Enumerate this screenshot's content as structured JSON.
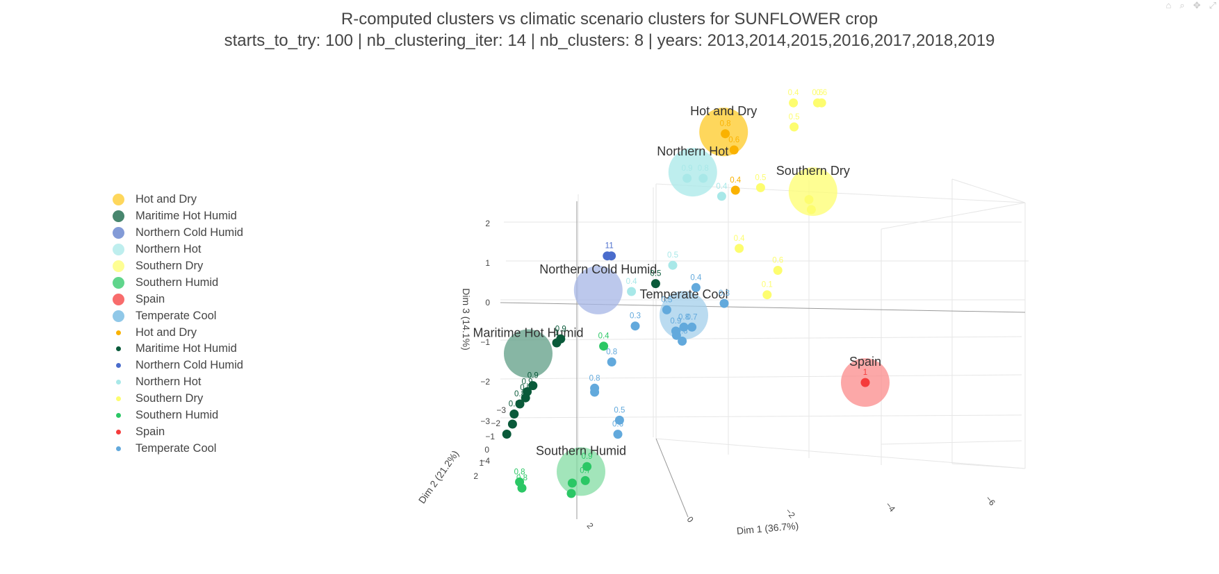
{
  "title": "R-computed clusters vs climatic scenario clusters for SUNFLOWER crop",
  "subtitle": "starts_to_try: 100 | nb_clustering_iter: 14 | nb_clusters: 8 | years: 2013,2014,2015,2016,2017,2018,2019",
  "modebar": {
    "camera": "⌂",
    "zoom": "⌕",
    "pan": "✥",
    "reset": "⤢"
  },
  "legend": [
    {
      "label": "Hot and Dry",
      "color": "#fdca26",
      "kind": "cluster"
    },
    {
      "label": "Maritime Hot Humid",
      "color": "#0b5d3d",
      "kind": "cluster"
    },
    {
      "label": "Northern Cold Humid",
      "color": "#5a79c9",
      "kind": "cluster"
    },
    {
      "label": "Northern Hot",
      "color": "#a8e8e8",
      "kind": "cluster"
    },
    {
      "label": "Southern Dry",
      "color": "#fdfd6f",
      "kind": "cluster"
    },
    {
      "label": "Southern Humid",
      "color": "#2bc765",
      "kind": "cluster"
    },
    {
      "label": "Spain",
      "color": "#f53b3b",
      "kind": "cluster"
    },
    {
      "label": "Temperate Cool",
      "color": "#6bb5e0",
      "kind": "cluster"
    },
    {
      "label": "Hot and Dry",
      "color": "#fab200",
      "kind": "point"
    },
    {
      "label": "Maritime Hot Humid",
      "color": "#0a5a3a",
      "kind": "point"
    },
    {
      "label": "Northern Cold Humid",
      "color": "#4a6ccc",
      "kind": "point"
    },
    {
      "label": "Northern Hot",
      "color": "#a8e8e8",
      "kind": "point"
    },
    {
      "label": "Southern Dry",
      "color": "#fdfd6f",
      "kind": "point"
    },
    {
      "label": "Southern Humid",
      "color": "#2bc765",
      "kind": "point"
    },
    {
      "label": "Spain",
      "color": "#f53b3b",
      "kind": "point"
    },
    {
      "label": "Temperate Cool",
      "color": "#62a9dc",
      "kind": "point"
    }
  ],
  "chart_data": {
    "type": "scatter",
    "projection": "3d",
    "xlabel": "Dim 1 (36.7%)",
    "ylabel": "Dim 2 (21.2%)",
    "zlabel": "Dim 3 (14.1%)",
    "x_ticks": [
      "2",
      "0",
      "−2",
      "−4",
      "−6"
    ],
    "y_ticks": [
      "−3",
      "−2",
      "−1",
      "0",
      "1",
      "2"
    ],
    "z_ticks": [
      "−4",
      "−3",
      "−2",
      "−1",
      "0",
      "1",
      "2"
    ],
    "grid": true,
    "legend_position": "left",
    "clusters": [
      {
        "name": "Hot and Dry",
        "color": "#fdca26",
        "x": -0.6,
        "y": -2.6,
        "z": 2.9
      },
      {
        "name": "Northern Hot",
        "color": "#a8e8e8",
        "x": 0.0,
        "y": -2.2,
        "z": 2.1
      },
      {
        "name": "Southern Dry",
        "color": "#fdfd6f",
        "x": -2.9,
        "y": -2.4,
        "z": 1.5
      },
      {
        "name": "Northern Cold Humid",
        "color": "#a6b5e6",
        "x": 1.6,
        "y": -0.4,
        "z": 0.1
      },
      {
        "name": "Maritime Hot Humid",
        "color": "#5f9e85",
        "x": 2.8,
        "y": 0.9,
        "z": -0.8
      },
      {
        "name": "Temperate Cool",
        "color": "#a3cfeb",
        "x": -0.4,
        "y": -0.7,
        "z": -0.7
      },
      {
        "name": "Spain",
        "color": "#fb8b8b",
        "x": -4.9,
        "y": -0.7,
        "z": -2.4
      },
      {
        "name": "Southern Humid",
        "color": "#83dca3",
        "x": 1.2,
        "y": 1.6,
        "z": -3.4
      }
    ],
    "points": [
      {
        "cluster": "Hot and Dry",
        "label": "0.8",
        "x": -0.6,
        "y": -2.7,
        "z": 2.8
      },
      {
        "cluster": "Hot and Dry",
        "label": "0.6",
        "x": -0.9,
        "y": -2.5,
        "z": 2.5
      },
      {
        "cluster": "Hot and Dry",
        "label": "0.4",
        "x": -1.1,
        "y": -2.1,
        "z": 1.7
      },
      {
        "cluster": "Southern Dry",
        "label": "0.4",
        "x": -2.0,
        "y": -3.4,
        "z": 3.2
      },
      {
        "cluster": "Southern Dry",
        "label": "0.6",
        "x": -2.6,
        "y": -3.4,
        "z": 3.2
      },
      {
        "cluster": "Southern Dry",
        "label": "0.6",
        "x": -2.7,
        "y": -3.4,
        "z": 3.2
      },
      {
        "cluster": "Southern Dry",
        "label": "0.5",
        "x": -2.1,
        "y": -3.2,
        "z": 2.7
      },
      {
        "cluster": "Southern Dry",
        "label": "0.5",
        "x": -1.6,
        "y": -2.4,
        "z": 1.6
      },
      {
        "cluster": "Southern Dry",
        "label": "0.4",
        "x": -1.4,
        "y": -1.6,
        "z": 0.5
      },
      {
        "cluster": "Southern Dry",
        "label": "0.6",
        "x": -2.4,
        "y": -1.5,
        "z": 0.0
      },
      {
        "cluster": "Southern Dry",
        "label": "0.1",
        "x": -2.3,
        "y": -1.1,
        "z": -0.4
      },
      {
        "cluster": "Southern Dry",
        "label": "",
        "x": -2.8,
        "y": -2.4,
        "z": 1.3
      },
      {
        "cluster": "Southern Dry",
        "label": "",
        "x": -2.9,
        "y": -2.3,
        "z": 1.1
      },
      {
        "cluster": "Northern Hot",
        "label": "0.9",
        "x": 0.1,
        "y": -2.1,
        "z": 2.0
      },
      {
        "cluster": "Northern Hot",
        "label": "0.8",
        "x": -0.3,
        "y": -2.1,
        "z": 2.0
      },
      {
        "cluster": "Northern Hot",
        "label": "0.4",
        "x": -0.8,
        "y": -2.0,
        "z": 1.6
      },
      {
        "cluster": "Northern Hot",
        "label": "0.5",
        "x": 0.0,
        "y": -1.0,
        "z": 0.4
      },
      {
        "cluster": "Northern Hot",
        "label": "0.4",
        "x": 0.9,
        "y": -0.7,
        "z": -0.1
      },
      {
        "cluster": "Northern Cold Humid",
        "label": "1",
        "x": 1.5,
        "y": -0.7,
        "z": 0.8
      },
      {
        "cluster": "Northern Cold Humid",
        "label": "1",
        "x": 1.4,
        "y": -0.7,
        "z": 0.8
      },
      {
        "cluster": "Maritime Hot Humid",
        "label": "0.5",
        "x": 0.3,
        "y": -0.7,
        "z": 0.1
      },
      {
        "cluster": "Maritime Hot Humid",
        "label": "0.9",
        "x": 2.2,
        "y": 0.4,
        "z": -0.7
      },
      {
        "cluster": "Maritime Hot Humid",
        "label": "1",
        "x": 2.3,
        "y": 0.4,
        "z": -0.8
      },
      {
        "cluster": "Maritime Hot Humid",
        "label": "0.9",
        "x": 2.6,
        "y": 1.1,
        "z": -1.5
      },
      {
        "cluster": "Maritime Hot Humid",
        "label": "0.9",
        "x": 2.7,
        "y": 1.2,
        "z": -1.6
      },
      {
        "cluster": "Maritime Hot Humid",
        "label": "0.9",
        "x": 2.7,
        "y": 1.3,
        "z": -1.7
      },
      {
        "cluster": "Maritime Hot Humid",
        "label": "0.8",
        "x": 2.8,
        "y": 1.4,
        "z": -1.8
      },
      {
        "cluster": "Maritime Hot Humid",
        "label": "0.8",
        "x": 2.9,
        "y": 1.5,
        "z": -2.0
      },
      {
        "cluster": "Maritime Hot Humid",
        "label": "",
        "x": 2.9,
        "y": 1.6,
        "z": -2.2
      },
      {
        "cluster": "Maritime Hot Humid",
        "label": "",
        "x": 3.0,
        "y": 1.7,
        "z": -2.4
      },
      {
        "cluster": "Temperate Cool",
        "label": "0.4",
        "x": -0.7,
        "y": -0.7,
        "z": 0.0
      },
      {
        "cluster": "Temperate Cool",
        "label": "0.3",
        "x": -1.4,
        "y": -0.7,
        "z": -0.4
      },
      {
        "cluster": "Temperate Cool",
        "label": "0.5",
        "x": -0.1,
        "y": -0.4,
        "z": -0.4
      },
      {
        "cluster": "Temperate Cool",
        "label": "0.3",
        "x": 0.6,
        "y": -0.2,
        "z": -0.7
      },
      {
        "cluster": "Temperate Cool",
        "label": "0.9",
        "x": -0.2,
        "y": -0.7,
        "z": -1.1
      },
      {
        "cluster": "Temperate Cool",
        "label": "0.8",
        "x": -0.4,
        "y": -0.7,
        "z": -1.0
      },
      {
        "cluster": "Temperate Cool",
        "label": "0.7",
        "x": -0.6,
        "y": -0.7,
        "z": -1.0
      },
      {
        "cluster": "Temperate Cool",
        "label": "0.8",
        "x": -0.4,
        "y": -0.6,
        "z": -1.3
      },
      {
        "cluster": "Temperate Cool",
        "label": "",
        "x": -0.3,
        "y": -0.5,
        "z": -1.1
      },
      {
        "cluster": "Temperate Cool",
        "label": "0.8",
        "x": 1.1,
        "y": 0.0,
        "z": -1.5
      },
      {
        "cluster": "Temperate Cool",
        "label": "0.8",
        "x": 1.4,
        "y": 0.3,
        "z": -2.0
      },
      {
        "cluster": "Temperate Cool",
        "label": "",
        "x": 1.4,
        "y": 0.3,
        "z": -2.1
      },
      {
        "cluster": "Temperate Cool",
        "label": "0.5",
        "x": 0.7,
        "y": 0.5,
        "z": -2.7
      },
      {
        "cluster": "Temperate Cool",
        "label": "0.6",
        "x": 0.7,
        "y": 0.6,
        "z": -3.0
      },
      {
        "cluster": "Southern Humid",
        "label": "0.4",
        "x": 1.3,
        "y": 0.0,
        "z": -1.1
      },
      {
        "cluster": "Southern Humid",
        "label": "0.9",
        "x": 1.3,
        "y": 1.0,
        "z": -3.6
      },
      {
        "cluster": "Southern Humid",
        "label": "0.7",
        "x": 1.3,
        "y": 1.1,
        "z": -3.9
      },
      {
        "cluster": "Southern Humid",
        "label": "",
        "x": 1.5,
        "y": 1.4,
        "z": -3.8
      },
      {
        "cluster": "Southern Humid",
        "label": "1",
        "x": 1.4,
        "y": 1.7,
        "z": -3.9
      },
      {
        "cluster": "Southern Humid",
        "label": "0.8",
        "x": 2.6,
        "y": 1.9,
        "z": -3.5
      },
      {
        "cluster": "Southern Humid",
        "label": "0.8",
        "x": 2.5,
        "y": 2.0,
        "z": -3.6
      },
      {
        "cluster": "Spain",
        "label": "1",
        "x": -4.9,
        "y": -0.7,
        "z": -2.4
      }
    ]
  }
}
